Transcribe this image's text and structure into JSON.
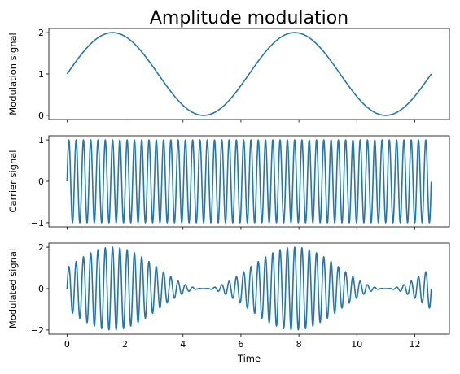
{
  "chart_data": {
    "type": "line",
    "title": "Amplitude modulation",
    "xlabel": "Time",
    "x_range": [
      0,
      12.566
    ],
    "x_ticks": [
      0,
      2,
      4,
      6,
      8,
      10,
      12
    ],
    "line_color": "#1f77b4",
    "subplots": [
      {
        "ylabel": "Modulation signal",
        "ylim": [
          -0.1,
          2.1
        ],
        "y_ticks": [
          0,
          1,
          2
        ],
        "formula": "1 + sin(t)",
        "series": [
          {
            "function": "modulation",
            "x_start": 0,
            "x_end": 12.566,
            "min": 0,
            "max": 2
          }
        ]
      },
      {
        "ylabel": "Carrier signal",
        "ylim": [
          -1.1,
          1.1
        ],
        "y_ticks": [
          -1,
          0,
          1
        ],
        "formula": "sin(25 t)",
        "series": [
          {
            "function": "carrier",
            "x_start": 0,
            "x_end": 12.566,
            "min": -1,
            "max": 1
          }
        ]
      },
      {
        "ylabel": "Modulated signal",
        "ylim": [
          -2.2,
          2.2
        ],
        "y_ticks": [
          -2,
          0,
          2
        ],
        "formula": "(1 + sin(t)) * sin(25 t)",
        "series": [
          {
            "function": "modulated",
            "x_start": 0,
            "x_end": 12.566,
            "min": -2,
            "max": 2
          }
        ]
      }
    ]
  }
}
